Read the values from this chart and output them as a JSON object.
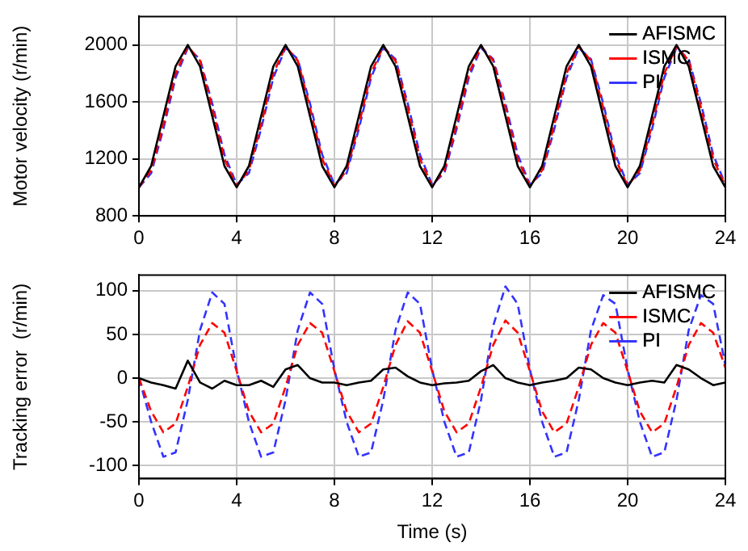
{
  "chart_data": [
    {
      "type": "line",
      "ylabel": "Motor velocity (r/min)",
      "x": [
        0,
        0.5,
        1,
        1.5,
        2,
        2.5,
        3,
        3.5,
        4,
        4.5,
        5,
        5.5,
        6,
        6.5,
        7,
        7.5,
        8,
        8.5,
        9,
        9.5,
        10,
        10.5,
        11,
        11.5,
        12,
        12.5,
        13,
        13.5,
        14,
        14.5,
        15,
        15.5,
        16,
        16.5,
        17,
        17.5,
        18,
        18.5,
        19,
        19.5,
        20,
        20.5,
        21,
        21.5,
        22,
        22.5,
        23,
        23.5,
        24
      ],
      "xlim": [
        0,
        24
      ],
      "xticks": [
        0,
        4,
        8,
        12,
        16,
        20,
        24
      ],
      "ylim": [
        800,
        2200
      ],
      "yticks": [
        800,
        1200,
        1600,
        2000
      ],
      "grid": true,
      "legend": "top right",
      "marker": "none",
      "series": [
        {
          "name": "AFISMC",
          "color": "#000000",
          "line_style": "solid",
          "values": [
            1000,
            1150,
            1500,
            1850,
            2000,
            1850,
            1500,
            1150,
            1000,
            1150,
            1500,
            1850,
            2000,
            1850,
            1500,
            1150,
            1000,
            1150,
            1500,
            1850,
            2000,
            1850,
            1500,
            1150,
            1000,
            1150,
            1500,
            1850,
            2000,
            1850,
            1500,
            1150,
            1000,
            1150,
            1500,
            1850,
            2000,
            1850,
            1500,
            1150,
            1000,
            1150,
            1500,
            1850,
            2000,
            1850,
            1500,
            1150,
            1000
          ]
        },
        {
          "name": "ISMC",
          "color": "#ff0000",
          "line_style": "dashed",
          "values": [
            1000,
            1120,
            1440,
            1800,
            1990,
            1890,
            1560,
            1200,
            1010,
            1120,
            1440,
            1800,
            1990,
            1890,
            1560,
            1200,
            1010,
            1120,
            1440,
            1800,
            1990,
            1890,
            1560,
            1200,
            1010,
            1120,
            1440,
            1800,
            1990,
            1890,
            1560,
            1200,
            1010,
            1120,
            1440,
            1800,
            1990,
            1890,
            1560,
            1200,
            1010,
            1120,
            1440,
            1800,
            1990,
            1890,
            1560,
            1200,
            1010
          ]
        },
        {
          "name": "PI",
          "color": "#3333ff",
          "line_style": "dashed",
          "values": [
            1000,
            1100,
            1410,
            1770,
            1980,
            1900,
            1590,
            1230,
            1020,
            1100,
            1410,
            1770,
            1980,
            1900,
            1590,
            1230,
            1020,
            1100,
            1410,
            1770,
            1980,
            1900,
            1590,
            1230,
            1020,
            1100,
            1410,
            1770,
            1980,
            1900,
            1590,
            1230,
            1020,
            1100,
            1410,
            1770,
            1980,
            1900,
            1590,
            1230,
            1020,
            1100,
            1410,
            1770,
            1980,
            1900,
            1590,
            1230,
            1020
          ]
        }
      ]
    },
    {
      "type": "line",
      "xlabel": "Time (s)",
      "ylabel": "Tracking error  (r/min)",
      "x": [
        0,
        0.5,
        1,
        1.5,
        2,
        2.5,
        3,
        3.5,
        4,
        4.5,
        5,
        5.5,
        6,
        6.5,
        7,
        7.5,
        8,
        8.5,
        9,
        9.5,
        10,
        10.5,
        11,
        11.5,
        12,
        12.5,
        13,
        13.5,
        14,
        14.5,
        15,
        15.5,
        16,
        16.5,
        17,
        17.5,
        18,
        18.5,
        19,
        19.5,
        20,
        20.5,
        21,
        21.5,
        22,
        22.5,
        23,
        23.5,
        24
      ],
      "xlim": [
        0,
        24
      ],
      "xticks": [
        0,
        4,
        8,
        12,
        16,
        20,
        24
      ],
      "ylim": [
        -115,
        118
      ],
      "yticks": [
        -100,
        -50,
        0,
        50,
        100
      ],
      "grid": true,
      "legend": "top right",
      "marker": "none",
      "series": [
        {
          "name": "AFISMC",
          "color": "#000000",
          "line_style": "solid",
          "values": [
            0,
            -5,
            -8,
            -12,
            20,
            -5,
            -12,
            -3,
            -8,
            -8,
            -3,
            -10,
            10,
            15,
            0,
            -5,
            -5,
            -8,
            -5,
            -3,
            10,
            12,
            2,
            -5,
            -8,
            -6,
            -5,
            -3,
            8,
            15,
            0,
            -5,
            -8,
            -5,
            -3,
            0,
            12,
            10,
            0,
            -5,
            -8,
            -5,
            -3,
            -5,
            15,
            10,
            0,
            -8,
            -5
          ]
        },
        {
          "name": "ISMC",
          "color": "#ff0000",
          "line_style": "dashed",
          "values": [
            0,
            -38,
            -62,
            -52,
            -10,
            38,
            63,
            52,
            8,
            -38,
            -62,
            -52,
            -10,
            38,
            63,
            52,
            8,
            -38,
            -62,
            -52,
            -10,
            38,
            65,
            52,
            8,
            -38,
            -62,
            -52,
            -10,
            38,
            66,
            52,
            8,
            -38,
            -62,
            -52,
            -10,
            38,
            63,
            52,
            8,
            -38,
            -62,
            -52,
            -10,
            38,
            63,
            52,
            12
          ]
        },
        {
          "name": "PI",
          "color": "#3333ff",
          "line_style": "dashed",
          "values": [
            0,
            -50,
            -90,
            -85,
            -25,
            55,
            98,
            85,
            10,
            -50,
            -90,
            -85,
            -25,
            55,
            98,
            85,
            10,
            -50,
            -90,
            -85,
            -25,
            55,
            98,
            85,
            10,
            -50,
            -90,
            -85,
            -25,
            60,
            105,
            85,
            10,
            -50,
            -90,
            -85,
            -25,
            55,
            95,
            85,
            10,
            -50,
            -90,
            -85,
            -25,
            55,
            95,
            85,
            15
          ]
        }
      ]
    }
  ]
}
